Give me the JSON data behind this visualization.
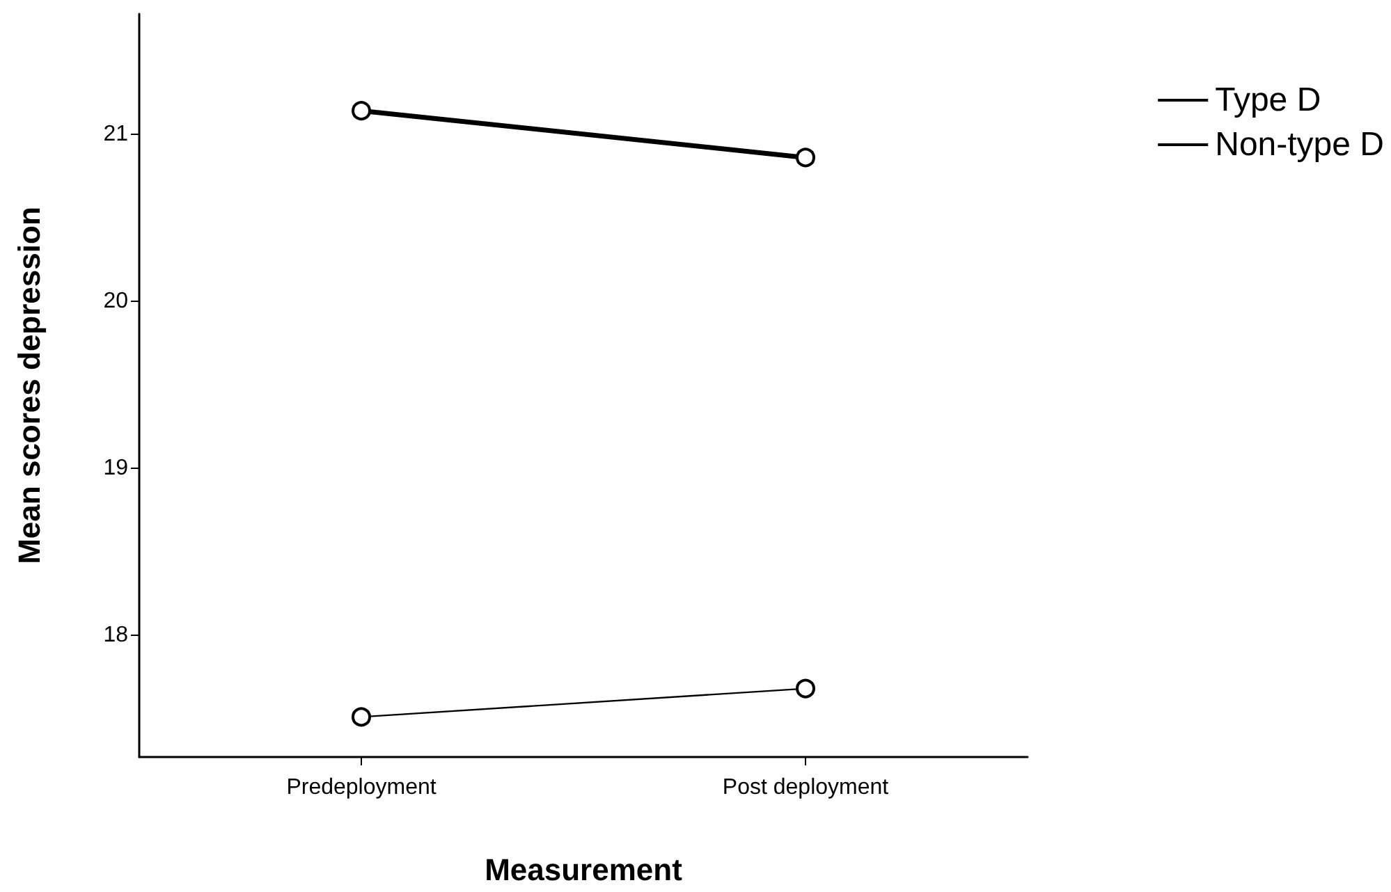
{
  "chart_data": {
    "type": "line",
    "xlabel": "Measurement",
    "ylabel": "Mean scores depression",
    "categories": [
      "Predeployment",
      "Post deployment"
    ],
    "series": [
      {
        "name": "Type D",
        "color": "#000000",
        "values": [
          21.14,
          20.86
        ]
      },
      {
        "name": "Non-type D",
        "color": "#000000",
        "values": [
          17.51,
          17.68
        ]
      }
    ],
    "ylim": [
      17.27,
      21.72
    ],
    "yticks": [
      18,
      19,
      20,
      21
    ],
    "grid": false,
    "legend": "right",
    "marker": "circle"
  }
}
